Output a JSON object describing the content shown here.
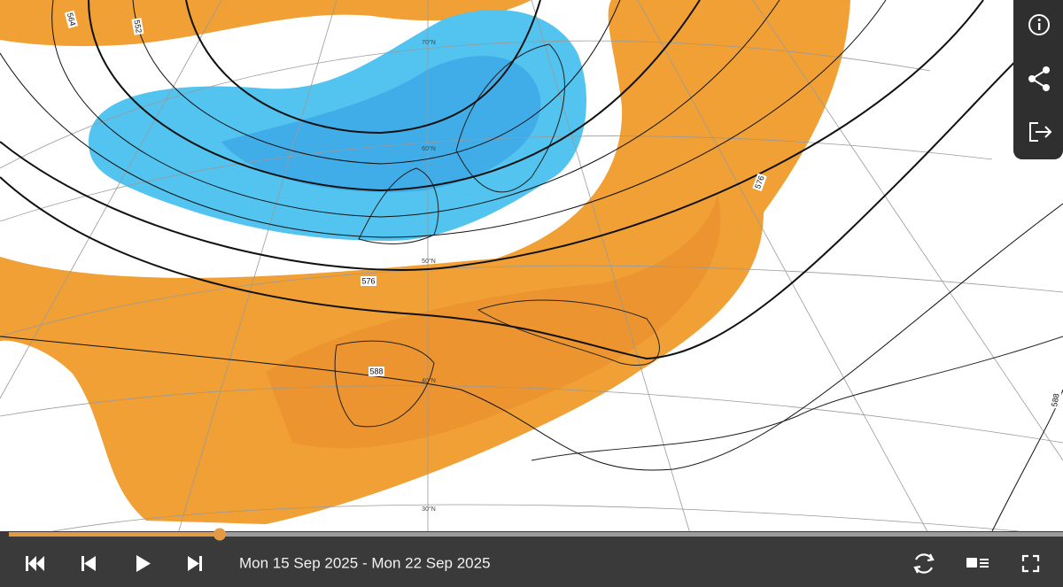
{
  "map": {
    "contour_labels": [
      "564",
      "552",
      "576",
      "576",
      "588",
      "588"
    ],
    "latitude_labels": [
      "70°N",
      "60°N",
      "50°N",
      "40°N",
      "30°N"
    ]
  },
  "player": {
    "date_range": "Mon 15 Sep 2025 - Mon 22 Sep 2025"
  }
}
